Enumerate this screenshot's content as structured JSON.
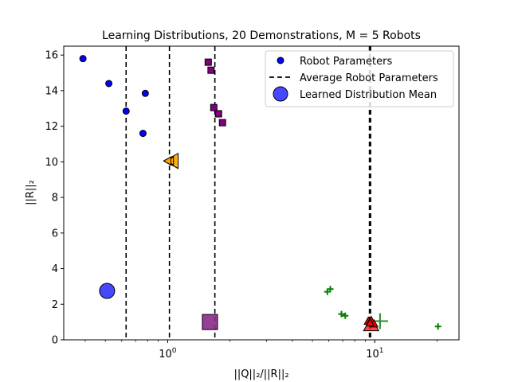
{
  "chart_data": {
    "type": "scatter",
    "title": "Learning Distributions, 20 Demonstrations, M = 5 Robots",
    "xlabel": "||Q||₂/||R||₂",
    "ylabel": "||R||₂",
    "xscale": "log",
    "xlim": [
      0.315,
      25.5
    ],
    "ylim": [
      0,
      16.5
    ],
    "x_ticks": [
      {
        "value": 1,
        "base": "10",
        "exp": "0"
      },
      {
        "value": 10,
        "base": "10",
        "exp": "1"
      }
    ],
    "y_ticks": [
      0,
      2,
      4,
      6,
      8,
      10,
      12,
      14,
      16
    ],
    "legend": {
      "position": "top-right",
      "entries": [
        {
          "label": "Robot Parameters",
          "marker": "circle"
        },
        {
          "label": "Average Robot Parameters",
          "marker": "dashed-line"
        },
        {
          "label": "Learned Distribution Mean",
          "marker": "large-circle"
        }
      ]
    },
    "average_lines": [
      0.63,
      1.02,
      1.69,
      9.42,
      9.55
    ],
    "groups": [
      {
        "name": "blue-circles",
        "marker": "circle",
        "color": "#0000ff",
        "points": [
          [
            0.39,
            15.8
          ],
          [
            0.52,
            14.4
          ],
          [
            0.63,
            12.85
          ],
          [
            0.78,
            13.85
          ],
          [
            0.76,
            11.6
          ]
        ],
        "mean": {
          "x": 0.51,
          "y": 2.75,
          "marker": "large-circle",
          "color": "#3333ff"
        }
      },
      {
        "name": "orange-triangles",
        "marker": "triangle-left",
        "color": "#ffa500",
        "points": [
          [
            1.0,
            10.05
          ],
          [
            1.02,
            10.05
          ],
          [
            1.01,
            10.05
          ],
          [
            1.03,
            10.05
          ],
          [
            1.0,
            10.05
          ]
        ],
        "mean": {
          "x": 1.05,
          "y": 10.05,
          "marker": "large-triangle-left",
          "color": "#ffa500"
        }
      },
      {
        "name": "purple-squares",
        "marker": "square",
        "color": "#800080",
        "points": [
          [
            1.57,
            15.6
          ],
          [
            1.62,
            15.15
          ],
          [
            1.67,
            13.05
          ],
          [
            1.76,
            12.7
          ],
          [
            1.84,
            12.2
          ]
        ],
        "mean": {
          "x": 1.6,
          "y": 1.0,
          "marker": "large-square",
          "color": "#8b2a8b"
        }
      },
      {
        "name": "red-triangles",
        "marker": "triangle-up",
        "color": "#ff0000",
        "points": [
          [
            9.3,
            1.05
          ],
          [
            9.7,
            1.0
          ],
          [
            9.6,
            1.1
          ],
          [
            9.9,
            0.9
          ],
          [
            9.5,
            0.95
          ]
        ],
        "mean": {
          "x": 9.6,
          "y": 0.85,
          "marker": "large-triangle-up",
          "color": "#ff3333"
        }
      },
      {
        "name": "green-crosses",
        "marker": "plus",
        "color": "#008000",
        "points": [
          [
            5.9,
            2.7
          ],
          [
            6.1,
            2.85
          ],
          [
            6.9,
            1.45
          ],
          [
            7.2,
            1.35
          ],
          [
            20.2,
            0.75
          ]
        ],
        "mean": {
          "x": 10.6,
          "y": 1.05,
          "marker": "large-plus",
          "color": "#2e8b2e"
        }
      }
    ]
  }
}
